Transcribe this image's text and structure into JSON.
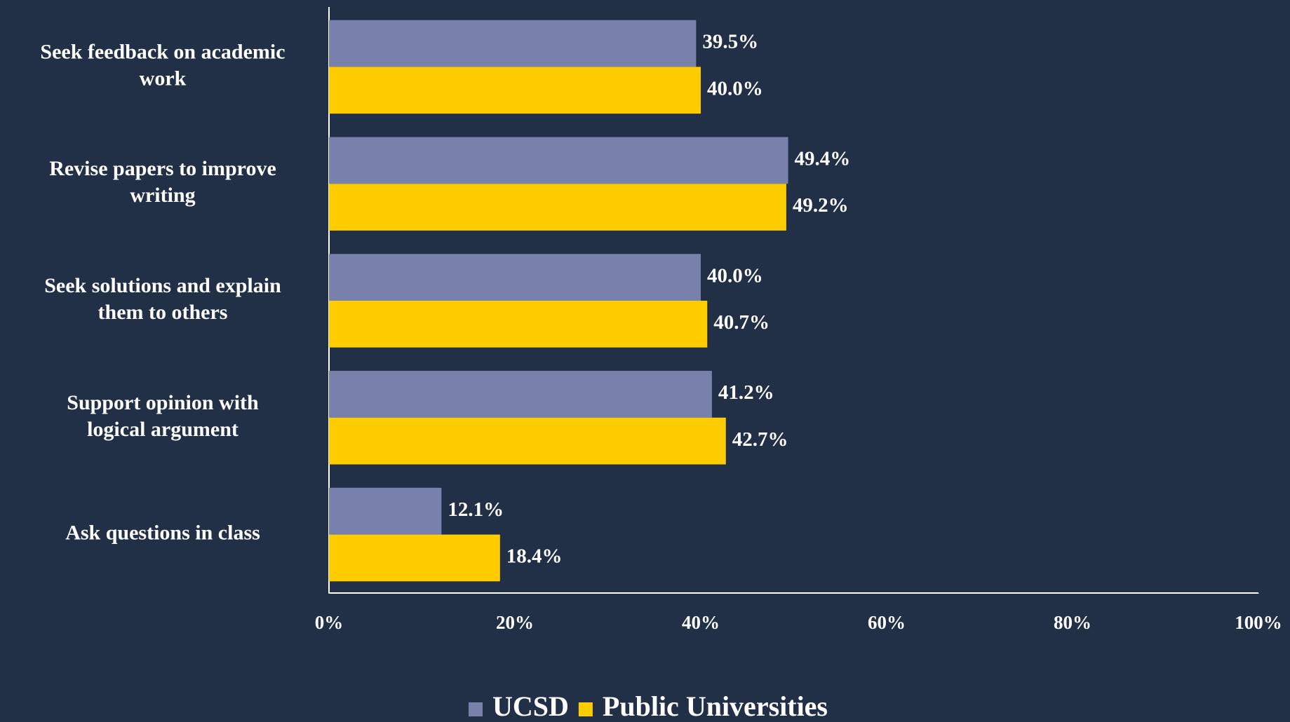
{
  "chart_data": {
    "type": "hbar",
    "categories": [
      "Seek feedback on academic work",
      "Revise papers to improve writing",
      "Seek solutions and explain them to others",
      "Support opinion with logical argument",
      "Ask questions in class"
    ],
    "series": [
      {
        "name": "UCSD",
        "color": "#7880ac",
        "values": [
          39.5,
          49.4,
          40.0,
          41.2,
          12.1
        ],
        "value_labels": [
          "39.5%",
          "49.4%",
          "40.0%",
          "41.2%",
          "12.1%"
        ]
      },
      {
        "name": "Public Universities",
        "color": "#ffcc00",
        "values": [
          40.0,
          49.2,
          40.7,
          42.7,
          18.4
        ],
        "value_labels": [
          "40.0%",
          "49.2%",
          "40.7%",
          "42.7%",
          "18.4%"
        ]
      }
    ],
    "xlim": [
      0,
      100
    ],
    "xticks": [
      {
        "value": 0,
        "label": "0%"
      },
      {
        "value": 20,
        "label": "20%"
      },
      {
        "value": 40,
        "label": "40%"
      },
      {
        "value": 60,
        "label": "60%"
      },
      {
        "value": 80,
        "label": "80%"
      },
      {
        "value": 100,
        "label": "100%"
      }
    ],
    "grid": false,
    "legend": "bottom"
  }
}
